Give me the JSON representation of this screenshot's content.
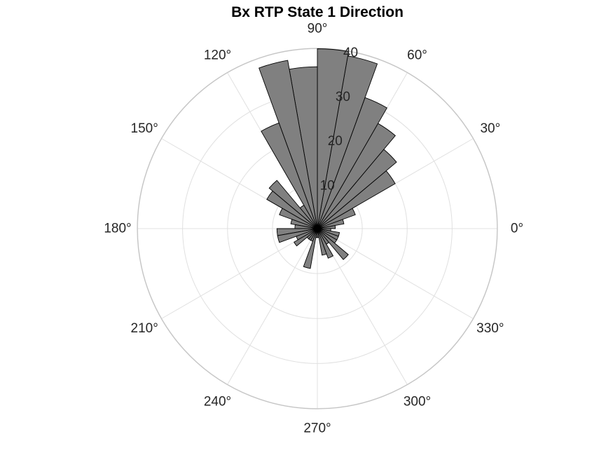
{
  "chart_data": {
    "type": "polar-histogram",
    "title": "Bx  RTP State 1 Direction",
    "theta_tick_labels": [
      "0°",
      "30°",
      "60°",
      "90°",
      "120°",
      "150°",
      "180°",
      "210°",
      "240°",
      "270°",
      "300°",
      "330°"
    ],
    "theta_ticks_deg": [
      0,
      30,
      60,
      90,
      120,
      150,
      180,
      210,
      240,
      270,
      300,
      330
    ],
    "r_tick_labels": [
      "10",
      "20",
      "30",
      "40"
    ],
    "r_ticks": [
      10,
      20,
      30,
      40
    ],
    "rlim": [
      0,
      40
    ],
    "grid": true,
    "bin_width_deg": 10,
    "bin_start_deg": [
      0,
      10,
      20,
      30,
      40,
      50,
      60,
      70,
      80,
      90,
      100,
      110,
      120,
      130,
      140,
      150,
      160,
      170,
      180,
      190,
      200,
      210,
      220,
      230,
      240,
      250,
      260,
      270,
      280,
      290,
      300,
      310,
      320,
      330,
      340,
      350
    ],
    "counts": [
      4,
      6,
      9,
      20,
      23,
      27,
      31,
      39,
      40,
      36,
      38,
      25,
      6,
      14,
      13,
      9,
      6,
      5,
      9,
      9,
      5,
      6,
      3,
      3,
      3,
      9,
      2,
      2,
      6,
      7,
      4,
      9,
      5,
      5,
      5,
      3
    ],
    "bar_color": "#808080",
    "edge_color": "#000000"
  }
}
